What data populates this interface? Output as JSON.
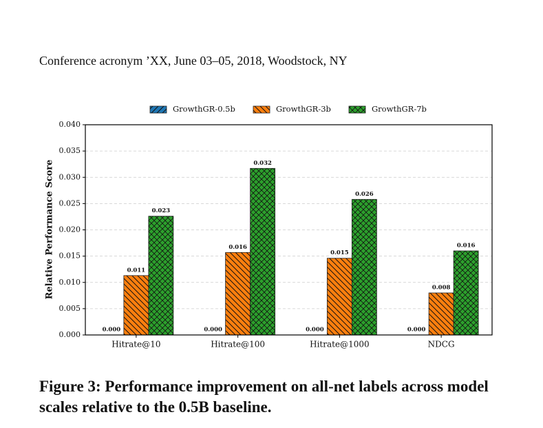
{
  "header": {
    "text": "Conference acronym ’XX, June 03–05, 2018, Woodstock, NY"
  },
  "chart_data": {
    "type": "bar",
    "y_label": "Relative Performance Score",
    "categories": [
      "Hitrate@10",
      "Hitrate@100",
      "Hitrate@1000",
      "NDCG"
    ],
    "series": [
      {
        "name": "GrowthGR-0.5b",
        "color": "#1f77b4",
        "hatch": "//",
        "values": [
          0,
          0,
          0,
          0
        ],
        "value_labels": [
          "0.000",
          "0.000",
          "0.000",
          "0.000"
        ]
      },
      {
        "name": "GrowthGR-3b",
        "color": "#ff7f0e",
        "hatch": "\\\\",
        "values": [
          0.0113,
          0.0157,
          0.0146,
          0.008
        ],
        "value_labels": [
          "0.011",
          "0.016",
          "0.015",
          "0.008"
        ]
      },
      {
        "name": "GrowthGR-7b",
        "color": "#2ca02c",
        "hatch": "x",
        "values": [
          0.0226,
          0.0317,
          0.0258,
          0.016
        ],
        "value_labels": [
          "0.023",
          "0.032",
          "0.026",
          "0.016"
        ]
      }
    ],
    "ylim": [
      0,
      0.04
    ],
    "yticks": [
      {
        "value": 0,
        "label": "0.000"
      },
      {
        "value": 0.005,
        "label": "0.005"
      },
      {
        "value": 0.01,
        "label": "0.010"
      },
      {
        "value": 0.015,
        "label": "0.015"
      },
      {
        "value": 0.02,
        "label": "0.020"
      },
      {
        "value": 0.025,
        "label": "0.025"
      },
      {
        "value": 0.03,
        "label": "0.030"
      },
      {
        "value": 0.035,
        "label": "0.035"
      },
      {
        "value": 0.04,
        "label": "0.040"
      }
    ],
    "grid": true,
    "legend": "top"
  },
  "caption": {
    "text": "Figure 3: Performance improvement on all-net labels across model scales relative to the 0.5B baseline."
  }
}
